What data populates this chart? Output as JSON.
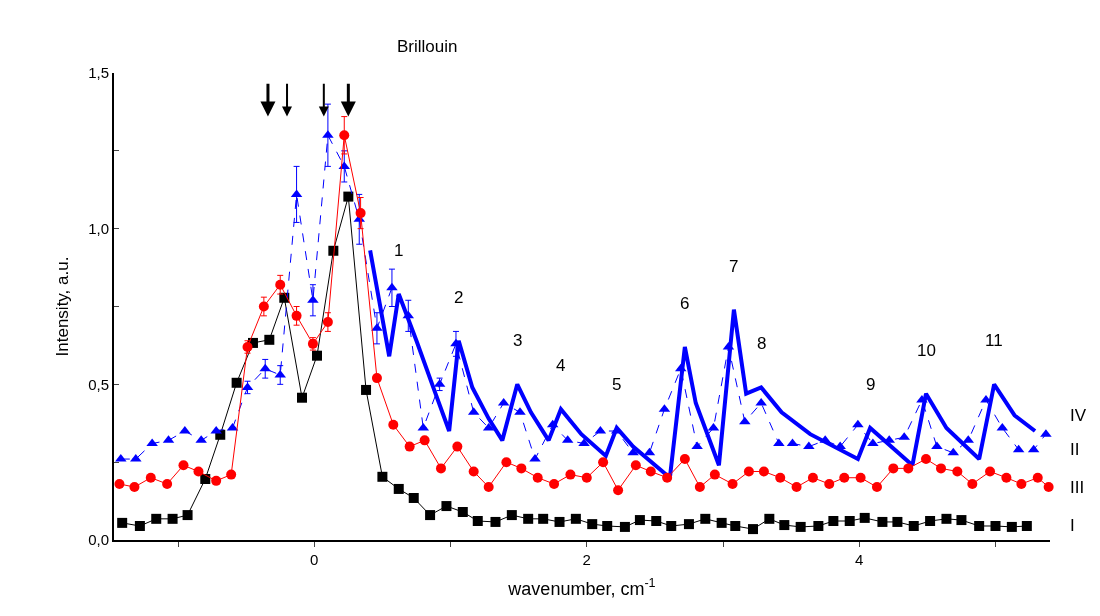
{
  "chart_data": {
    "type": "line",
    "xlabel": "wavenumber, cm$^{-1}$",
    "ylabel": "Intensity, a.u.",
    "xlim": [
      -1.47,
      5.4
    ],
    "xticks": [
      {
        "value": -1,
        "label": null
      },
      0,
      {
        "value": 1,
        "label": null
      },
      2,
      {
        "value": 3,
        "label": null
      },
      4,
      {
        "value": 5,
        "label": null
      }
    ],
    "ylim": [
      0,
      1.5
    ],
    "yticks": [
      {
        "value": 0,
        "label": "0,0"
      },
      {
        "value": 0.25,
        "label": null
      },
      {
        "value": 0.5,
        "label": "0,5"
      },
      {
        "value": 0.75,
        "label": null
      },
      {
        "value": 1.0,
        "label": "1,0"
      },
      {
        "value": 1.25,
        "label": null
      },
      {
        "value": 1.5,
        "label": "1,5"
      }
    ],
    "series": [
      {
        "name": "I",
        "color": "#000000",
        "marker": "square",
        "line_style": "solid",
        "x": [
          -1.41,
          -1.28,
          -1.16,
          -1.04,
          -0.93,
          -0.8,
          -0.69,
          -0.57,
          -0.45,
          -0.33,
          -0.22,
          -0.09,
          0.02,
          0.14,
          0.25,
          0.38,
          0.5,
          0.62,
          0.73,
          0.85,
          0.97,
          1.09,
          1.2,
          1.33,
          1.45,
          1.57,
          1.68,
          1.8,
          1.92,
          2.04,
          2.15,
          2.28,
          2.39,
          2.51,
          2.62,
          2.75,
          2.87,
          2.99,
          3.09,
          3.22,
          3.34,
          3.45,
          3.57,
          3.7,
          3.81,
          3.93,
          4.04,
          4.17,
          4.28,
          4.4,
          4.52,
          4.64,
          4.75,
          4.88,
          5.0,
          5.12,
          5.23
        ],
        "values": [
          0.055,
          0.045,
          0.068,
          0.068,
          0.08,
          0.196,
          0.338,
          0.505,
          0.633,
          0.643,
          0.778,
          0.457,
          0.592,
          0.929,
          1.103,
          0.482,
          0.203,
          0.164,
          0.135,
          0.08,
          0.109,
          0.09,
          0.061,
          0.058,
          0.08,
          0.068,
          0.068,
          0.058,
          0.068,
          0.051,
          0.045,
          0.042,
          0.064,
          0.061,
          0.045,
          0.051,
          0.068,
          0.055,
          0.045,
          0.035,
          0.068,
          0.048,
          0.042,
          0.045,
          0.061,
          0.061,
          0.071,
          0.058,
          0.058,
          0.045,
          0.061,
          0.068,
          0.064,
          0.045,
          0.045,
          0.042,
          0.045
        ]
      },
      {
        "name": "II",
        "color": "#0000ff",
        "marker": "triangle",
        "line_style": "dashed",
        "x": [
          -1.42,
          -1.31,
          -1.19,
          -1.07,
          -0.95,
          -0.83,
          -0.72,
          -0.6,
          -0.49,
          -0.36,
          -0.25,
          -0.13,
          -0.01,
          0.1,
          0.22,
          0.33,
          0.46,
          0.57,
          0.69,
          0.8,
          0.92,
          1.04,
          1.17,
          1.28,
          1.39,
          1.51,
          1.62,
          1.75,
          1.86,
          1.98,
          2.1,
          2.22,
          2.34,
          2.46,
          2.57,
          2.69,
          2.81,
          2.93,
          3.04,
          3.16,
          3.28,
          3.41,
          3.51,
          3.63,
          3.75,
          3.86,
          3.99,
          4.1,
          4.22,
          4.33,
          4.46,
          4.57,
          4.69,
          4.8,
          4.93,
          5.05,
          5.17,
          5.28,
          5.37
        ],
        "values": [
          0.26,
          0.26,
          0.31,
          0.32,
          0.35,
          0.32,
          0.35,
          0.36,
          0.49,
          0.55,
          0.53,
          1.11,
          0.77,
          1.3,
          1.2,
          1.03,
          0.68,
          0.81,
          0.72,
          0.36,
          0.5,
          0.63,
          0.41,
          0.36,
          0.44,
          0.41,
          0.26,
          0.37,
          0.32,
          0.31,
          0.35,
          0.35,
          0.28,
          0.28,
          0.42,
          0.55,
          0.3,
          0.36,
          0.62,
          0.38,
          0.44,
          0.31,
          0.31,
          0.3,
          0.32,
          0.3,
          0.37,
          0.31,
          0.32,
          0.33,
          0.45,
          0.3,
          0.28,
          0.32,
          0.45,
          0.36,
          0.29,
          0.29,
          0.34
        ],
        "errors": [
          null,
          null,
          null,
          null,
          null,
          null,
          null,
          null,
          0.02,
          0.03,
          0.03,
          0.09,
          0.05,
          0.1,
          0.05,
          0.08,
          0.05,
          0.06,
          0.05,
          null,
          0.02,
          0.04,
          null,
          null,
          null,
          null,
          null,
          null,
          null,
          null,
          null,
          null,
          null,
          null,
          null,
          null,
          null,
          null,
          null,
          null,
          null,
          null,
          null,
          null,
          null,
          null,
          null,
          null,
          null,
          null,
          null,
          null,
          null,
          null,
          null,
          null,
          null,
          null,
          null
        ]
      },
      {
        "name": "III",
        "color": "#ff0000",
        "marker": "circle",
        "line_style": "solid",
        "x": [
          -1.43,
          -1.32,
          -1.2,
          -1.08,
          -0.96,
          -0.85,
          -0.72,
          -0.61,
          -0.49,
          -0.37,
          -0.25,
          -0.13,
          -0.01,
          0.1,
          0.22,
          0.34,
          0.46,
          0.58,
          0.7,
          0.81,
          0.93,
          1.05,
          1.17,
          1.28,
          1.41,
          1.52,
          1.64,
          1.76,
          1.88,
          2.0,
          2.12,
          2.23,
          2.36,
          2.47,
          2.59,
          2.72,
          2.83,
          2.94,
          3.07,
          3.19,
          3.3,
          3.42,
          3.54,
          3.66,
          3.78,
          3.89,
          4.01,
          4.13,
          4.25,
          4.36,
          4.49,
          4.6,
          4.72,
          4.83,
          4.96,
          5.08,
          5.19,
          5.31,
          5.39
        ],
        "values": [
          0.18,
          0.17,
          0.2,
          0.18,
          0.24,
          0.22,
          0.19,
          0.21,
          0.62,
          0.75,
          0.82,
          0.72,
          0.63,
          0.7,
          1.3,
          1.05,
          0.52,
          0.37,
          0.3,
          0.32,
          0.23,
          0.3,
          0.22,
          0.17,
          0.25,
          0.23,
          0.2,
          0.18,
          0.21,
          0.2,
          0.25,
          0.16,
          0.24,
          0.22,
          0.2,
          0.26,
          0.17,
          0.21,
          0.18,
          0.22,
          0.22,
          0.2,
          0.17,
          0.2,
          0.18,
          0.2,
          0.2,
          0.17,
          0.23,
          0.23,
          0.26,
          0.23,
          0.22,
          0.18,
          0.22,
          0.2,
          0.18,
          0.2,
          0.17
        ],
        "errors": [
          null,
          null,
          null,
          null,
          null,
          null,
          null,
          null,
          0.02,
          0.03,
          0.03,
          0.03,
          0.02,
          0.03,
          0.06,
          0.05,
          null,
          null,
          null,
          null,
          null,
          null,
          null,
          null,
          null,
          null,
          null,
          null,
          null,
          null,
          null,
          null,
          null,
          null,
          null,
          null,
          null,
          null,
          null,
          null,
          null,
          null,
          null,
          null,
          null,
          null,
          null,
          null,
          null,
          null,
          null,
          null,
          null,
          null,
          null,
          null,
          null,
          null,
          null
        ]
      },
      {
        "name": "IV",
        "color": "#0000ff",
        "marker": "none",
        "line_style": "solid",
        "x": [
          0.41,
          0.48,
          0.55,
          0.62,
          0.75,
          0.89,
          0.99,
          1.06,
          1.16,
          1.28,
          1.38,
          1.49,
          1.59,
          1.72,
          1.81,
          1.96,
          2.14,
          2.22,
          2.34,
          2.61,
          2.72,
          2.8,
          2.97,
          3.08,
          3.17,
          3.28,
          3.43,
          3.64,
          3.99,
          4.08,
          4.39,
          4.49,
          4.64,
          4.88,
          4.99,
          5.14,
          5.29
        ],
        "values": [
          0.93,
          0.76,
          0.59,
          0.79,
          0.64,
          0.47,
          0.35,
          0.64,
          0.49,
          0.39,
          0.32,
          0.5,
          0.41,
          0.32,
          0.42,
          0.34,
          0.27,
          0.36,
          0.3,
          0.2,
          0.62,
          0.44,
          0.24,
          0.74,
          0.47,
          0.49,
          0.41,
          0.34,
          0.26,
          0.36,
          0.24,
          0.47,
          0.36,
          0.26,
          0.5,
          0.4,
          0.35
        ]
      }
    ],
    "annotations": [
      "Brillouin",
      {
        "text": "1",
        "x": 0.62,
        "y": 0.79
      },
      {
        "text": "2",
        "x": 1.06,
        "y": 0.64
      },
      {
        "text": "3",
        "x": 1.49,
        "y": 0.5
      },
      {
        "text": "4",
        "x": 1.81,
        "y": 0.42
      },
      {
        "text": "5",
        "x": 2.22,
        "y": 0.36
      },
      {
        "text": "6",
        "x": 2.72,
        "y": 0.62
      },
      {
        "text": "7",
        "x": 3.08,
        "y": 0.74
      },
      {
        "text": "8",
        "x": 3.28,
        "y": 0.49
      },
      {
        "text": "9",
        "x": 4.08,
        "y": 0.36
      },
      {
        "text": "10",
        "x": 4.49,
        "y": 0.47
      },
      {
        "text": "11",
        "x": 4.99,
        "y": 0.5
      }
    ]
  }
}
